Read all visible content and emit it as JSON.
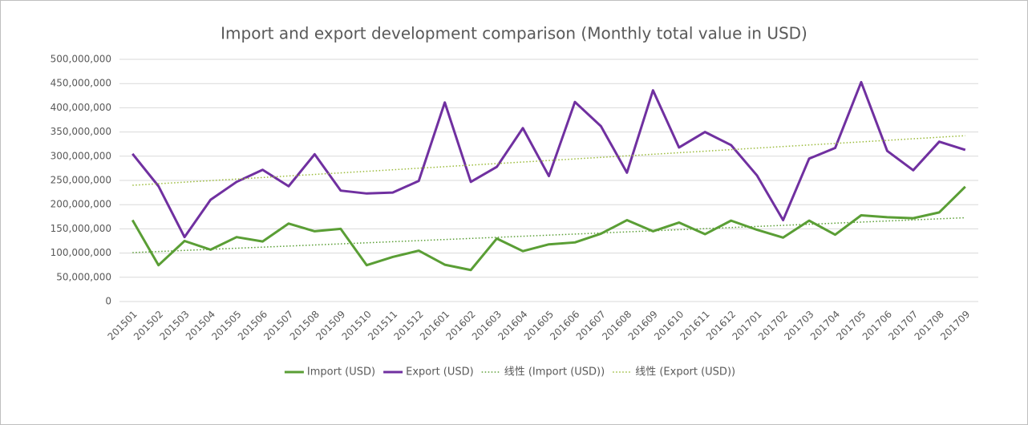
{
  "chart_data": {
    "type": "line",
    "title": "Import and export development comparison (Monthly total value in USD)",
    "categories": [
      "201501",
      "201502",
      "201503",
      "201504",
      "201505",
      "201506",
      "201507",
      "201508",
      "201509",
      "201510",
      "201511",
      "201512",
      "201601",
      "201602",
      "201603",
      "201604",
      "201605",
      "201606",
      "201607",
      "201608",
      "201609",
      "201610",
      "201611",
      "201612",
      "201701",
      "201702",
      "201703",
      "201704",
      "201705",
      "201706",
      "201707",
      "201708",
      "201709"
    ],
    "series": [
      {
        "name": "Import (USD)",
        "color": "#5a9e35",
        "style": "solid",
        "values": [
          168000000,
          75000000,
          125000000,
          107000000,
          133000000,
          124000000,
          161000000,
          145000000,
          150000000,
          75000000,
          92000000,
          105000000,
          76000000,
          65000000,
          130000000,
          104000000,
          118000000,
          122000000,
          140000000,
          168000000,
          145000000,
          163000000,
          139000000,
          167000000,
          148000000,
          132000000,
          167000000,
          138000000,
          178000000,
          174000000,
          172000000,
          184000000,
          237000000
        ]
      },
      {
        "name": "Export (USD)",
        "color": "#7030a0",
        "style": "solid",
        "values": [
          305000000,
          238000000,
          133000000,
          210000000,
          247000000,
          272000000,
          238000000,
          304000000,
          229000000,
          223000000,
          225000000,
          249000000,
          411000000,
          247000000,
          278000000,
          358000000,
          259000000,
          412000000,
          362000000,
          266000000,
          436000000,
          318000000,
          350000000,
          323000000,
          260000000,
          168000000,
          295000000,
          317000000,
          453000000,
          311000000,
          271000000,
          330000000,
          313000000
        ]
      },
      {
        "name": "线性 (Import (USD))",
        "color": "#5a9e35",
        "style": "dotted",
        "values": [
          101000000,
          103250000,
          105500000,
          107750000,
          110000000,
          112250000,
          114500000,
          116750000,
          119000000,
          121250000,
          123500000,
          125750000,
          128000000,
          130250000,
          132500000,
          134750000,
          137000000,
          139250000,
          141500000,
          143750000,
          146000000,
          148250000,
          150500000,
          152750000,
          155000000,
          157250000,
          159500000,
          161750000,
          164000000,
          166250000,
          168500000,
          170750000,
          173000000
        ]
      },
      {
        "name": "线性 (Export (USD))",
        "color": "#9bbb3b",
        "style": "dotted",
        "values": [
          240000000,
          243200000,
          246400000,
          249600000,
          252800000,
          256000000,
          259200000,
          262400000,
          265600000,
          268800000,
          272000000,
          275200000,
          278400000,
          281600000,
          284800000,
          288000000,
          291200000,
          294400000,
          297600000,
          300800000,
          304000000,
          307200000,
          310400000,
          313600000,
          316800000,
          320000000,
          323200000,
          326400000,
          329600000,
          332800000,
          336000000,
          339200000,
          342400000
        ]
      }
    ],
    "ylim": [
      0,
      500000000
    ],
    "yticks": [
      0,
      {
        "value": 50000000,
        "label": "50,000,000"
      },
      {
        "value": 100000000,
        "label": "100,000,000"
      },
      {
        "value": 150000000,
        "label": "150,000,000"
      },
      {
        "value": 200000000,
        "label": "200,000,000"
      },
      {
        "value": 250000000,
        "label": "250,000,000"
      },
      {
        "value": 300000000,
        "label": "300,000,000"
      },
      {
        "value": 350000000,
        "label": "350,000,000"
      },
      {
        "value": 400000000,
        "label": "400,000,000"
      },
      {
        "value": 450000000,
        "label": "450,000,000"
      },
      {
        "value": 500000000,
        "label": "500,000,000"
      }
    ],
    "grid": true,
    "legend": "bottom"
  }
}
